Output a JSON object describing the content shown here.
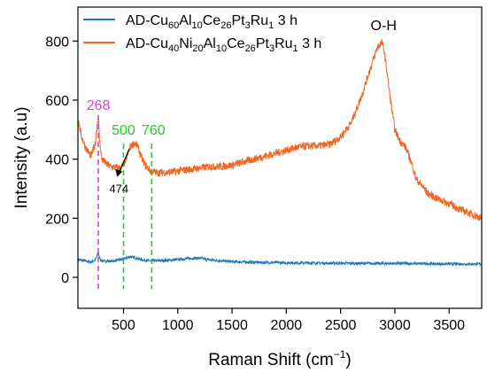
{
  "chart_data": {
    "type": "line",
    "xlabel": "Raman Shift (cm",
    "xlabel_sup": "−1",
    "xlabel_close": ")",
    "ylabel": "Intensity (a.u)",
    "xlim": [
      80,
      3800
    ],
    "ylim": [
      -105,
      915
    ],
    "x_ticks": [
      500,
      1000,
      1500,
      2000,
      2500,
      3000,
      3500
    ],
    "x_tick_labels": [
      "500",
      "1000",
      "1500",
      "2000",
      "2500",
      "3000",
      "3500"
    ],
    "y_ticks": [
      0,
      200,
      400,
      600,
      800
    ],
    "y_tick_labels": [
      "0",
      "200",
      "400",
      "600",
      "800"
    ],
    "grid": false,
    "legend_position": "top-left",
    "series": [
      {
        "legend_parts": [
          "AD-Cu",
          "60",
          "Al",
          "10",
          "Ce",
          "26",
          "Pt",
          "3",
          "Ru",
          "1",
          " 3 h"
        ],
        "color": "#1f77b4",
        "x": [
          80,
          150,
          200,
          240,
          262,
          268,
          275,
          290,
          320,
          400,
          500,
          560,
          600,
          650,
          700,
          800,
          900,
          1000,
          1100,
          1200,
          1300,
          1500,
          1800,
          2100,
          2400,
          2700,
          3000,
          3300,
          3600,
          3800
        ],
        "y": [
          60,
          55,
          52,
          58,
          78,
          90,
          70,
          58,
          55,
          55,
          62,
          70,
          67,
          62,
          57,
          56,
          57,
          60,
          64,
          65,
          59,
          53,
          50,
          49,
          48,
          47,
          47,
          46,
          45,
          45
        ]
      },
      {
        "legend_parts": [
          "AD-Cu",
          "40",
          "Ni",
          "20",
          "Al",
          "10",
          "Ce",
          "26",
          "Pt",
          "3",
          "Ru",
          "1",
          " 3 h"
        ],
        "color": "#f26522",
        "x": [
          80,
          110,
          150,
          200,
          240,
          258,
          268,
          278,
          300,
          340,
          380,
          420,
          474,
          520,
          560,
          600,
          630,
          660,
          700,
          750,
          800,
          900,
          1000,
          1100,
          1200,
          1300,
          1400,
          1500,
          1600,
          1700,
          1800,
          1900,
          2000,
          2100,
          2200,
          2300,
          2400,
          2500,
          2600,
          2700,
          2750,
          2800,
          2840,
          2880,
          2900,
          2930,
          2960,
          3000,
          3050,
          3100,
          3150,
          3200,
          3250,
          3300,
          3400,
          3500,
          3600,
          3700,
          3800
        ],
        "y": [
          540,
          480,
          440,
          410,
          450,
          520,
          545,
          470,
          400,
          385,
          375,
          372,
          370,
          395,
          440,
          455,
          445,
          410,
          380,
          360,
          355,
          355,
          360,
          365,
          370,
          375,
          375,
          380,
          390,
          400,
          410,
          420,
          430,
          440,
          445,
          445,
          450,
          475,
          525,
          620,
          680,
          735,
          780,
          795,
          770,
          690,
          600,
          500,
          460,
          440,
          390,
          330,
          310,
          285,
          265,
          250,
          230,
          215,
          200
        ]
      }
    ],
    "annotations": [
      {
        "text": "268",
        "x": 268,
        "color": "#e040e0"
      },
      {
        "text": "500",
        "x": 500,
        "color": "#22cc22"
      },
      {
        "text": "760",
        "x": 760,
        "color": "#22cc22"
      },
      {
        "text": "474",
        "x": 474,
        "y": 370,
        "color": "#000000"
      },
      {
        "text": "O-H",
        "x": 2880,
        "y": 795,
        "color": "#000000"
      }
    ]
  }
}
